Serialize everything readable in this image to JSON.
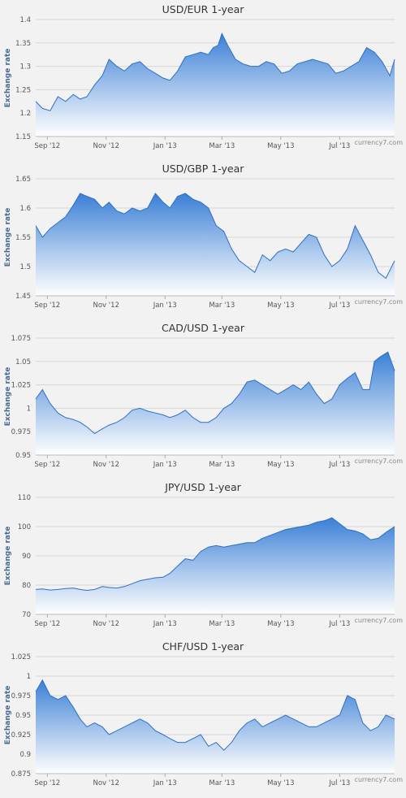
{
  "source_credit": "currency7.com",
  "chart_data": [
    {
      "type": "area",
      "title": "USD/EUR 1-year",
      "ylabel": "Exchange rate",
      "ylim": [
        1.15,
        1.4
      ],
      "yticks": [
        1.15,
        1.2,
        1.25,
        1.3,
        1.35,
        1.4
      ],
      "xlim": [
        "2012-08-20",
        "2013-08-27"
      ],
      "xticks": [
        {
          "label": "Sep '12",
          "date": "2012-09-01"
        },
        {
          "label": "Nov '12",
          "date": "2012-11-01"
        },
        {
          "label": "Jan '13",
          "date": "2013-01-01"
        },
        {
          "label": "Mar '13",
          "date": "2013-03-01"
        },
        {
          "label": "May '13",
          "date": "2013-05-01"
        },
        {
          "label": "Jul '13",
          "date": "2013-07-01"
        }
      ],
      "credit": "currency7.com",
      "series": [
        {
          "x": [
            "2012-08-20",
            "2012-08-27",
            "2012-09-04",
            "2012-09-12",
            "2012-09-20",
            "2012-09-28",
            "2012-10-05",
            "2012-10-12",
            "2012-10-20",
            "2012-10-28",
            "2012-11-04",
            "2012-11-12",
            "2012-11-20",
            "2012-11-28",
            "2012-12-06",
            "2012-12-14",
            "2012-12-22",
            "2012-12-30",
            "2013-01-06",
            "2013-01-14",
            "2013-01-22",
            "2013-01-30",
            "2013-02-07",
            "2013-02-15",
            "2013-02-20",
            "2013-02-25",
            "2013-03-01",
            "2013-03-07",
            "2013-03-15",
            "2013-03-23",
            "2013-03-31",
            "2013-04-08",
            "2013-04-16",
            "2013-04-24",
            "2013-05-02",
            "2013-05-10",
            "2013-05-18",
            "2013-05-26",
            "2013-06-03",
            "2013-06-11",
            "2013-06-19",
            "2013-06-27",
            "2013-07-05",
            "2013-07-13",
            "2013-07-21",
            "2013-07-29",
            "2013-08-06",
            "2013-08-14",
            "2013-08-22",
            "2013-08-27"
          ],
          "values": [
            1.225,
            1.21,
            1.205,
            1.235,
            1.225,
            1.24,
            1.23,
            1.235,
            1.26,
            1.28,
            1.315,
            1.3,
            1.29,
            1.305,
            1.31,
            1.295,
            1.285,
            1.275,
            1.27,
            1.29,
            1.32,
            1.325,
            1.33,
            1.325,
            1.34,
            1.345,
            1.37,
            1.345,
            1.315,
            1.305,
            1.3,
            1.3,
            1.31,
            1.305,
            1.285,
            1.29,
            1.305,
            1.31,
            1.315,
            1.31,
            1.305,
            1.285,
            1.29,
            1.3,
            1.31,
            1.34,
            1.33,
            1.31,
            1.28,
            1.315
          ]
        }
      ]
    },
    {
      "type": "area",
      "title": "USD/GBP 1-year",
      "ylabel": "Exchange rate",
      "ylim": [
        1.45,
        1.65
      ],
      "yticks": [
        1.45,
        1.5,
        1.55,
        1.6,
        1.65
      ],
      "xlim": [
        "2012-08-20",
        "2013-08-27"
      ],
      "xticks": [
        {
          "label": "Sep '12",
          "date": "2012-09-01"
        },
        {
          "label": "Nov '12",
          "date": "2012-11-01"
        },
        {
          "label": "Jan '13",
          "date": "2013-01-01"
        },
        {
          "label": "Mar '13",
          "date": "2013-03-01"
        },
        {
          "label": "May '13",
          "date": "2013-05-01"
        },
        {
          "label": "Jul '13",
          "date": "2013-07-01"
        }
      ],
      "credit": "currency7.com",
      "series": [
        {
          "x": [
            "2012-08-20",
            "2012-08-27",
            "2012-09-04",
            "2012-09-12",
            "2012-09-20",
            "2012-09-28",
            "2012-10-05",
            "2012-10-12",
            "2012-10-20",
            "2012-10-28",
            "2012-11-04",
            "2012-11-12",
            "2012-11-20",
            "2012-11-28",
            "2012-12-06",
            "2012-12-14",
            "2012-12-22",
            "2012-12-30",
            "2013-01-06",
            "2013-01-14",
            "2013-01-22",
            "2013-01-30",
            "2013-02-07",
            "2013-02-15",
            "2013-02-23",
            "2013-03-03",
            "2013-03-11",
            "2013-03-19",
            "2013-03-27",
            "2013-04-04",
            "2013-04-12",
            "2013-04-20",
            "2013-04-28",
            "2013-05-06",
            "2013-05-14",
            "2013-05-22",
            "2013-05-30",
            "2013-06-07",
            "2013-06-15",
            "2013-06-23",
            "2013-07-01",
            "2013-07-09",
            "2013-07-17",
            "2013-07-25",
            "2013-08-02",
            "2013-08-10",
            "2013-08-18",
            "2013-08-27"
          ],
          "values": [
            1.57,
            1.55,
            1.565,
            1.575,
            1.585,
            1.605,
            1.625,
            1.62,
            1.615,
            1.6,
            1.61,
            1.595,
            1.59,
            1.6,
            1.595,
            1.6,
            1.625,
            1.61,
            1.6,
            1.62,
            1.625,
            1.615,
            1.61,
            1.6,
            1.57,
            1.56,
            1.53,
            1.51,
            1.5,
            1.49,
            1.52,
            1.51,
            1.525,
            1.53,
            1.525,
            1.54,
            1.555,
            1.55,
            1.52,
            1.5,
            1.51,
            1.53,
            1.57,
            1.545,
            1.52,
            1.49,
            1.48,
            1.51
          ]
        }
      ]
    },
    {
      "type": "area",
      "title": "CAD/USD 1-year",
      "ylabel": "Exchange rate",
      "ylim": [
        0.95,
        1.075
      ],
      "yticks": [
        0.95,
        0.975,
        1,
        1.025,
        1.05,
        1.075
      ],
      "xlim": [
        "2012-08-20",
        "2013-08-27"
      ],
      "xticks": [
        {
          "label": "Sep '12",
          "date": "2012-09-01"
        },
        {
          "label": "Nov '12",
          "date": "2012-11-01"
        },
        {
          "label": "Jan '13",
          "date": "2013-01-01"
        },
        {
          "label": "Mar '13",
          "date": "2013-03-01"
        },
        {
          "label": "May '13",
          "date": "2013-05-01"
        },
        {
          "label": "Jul '13",
          "date": "2013-07-01"
        }
      ],
      "credit": "currency7.com",
      "series": [
        {
          "x": [
            "2012-08-20",
            "2012-08-27",
            "2012-09-04",
            "2012-09-12",
            "2012-09-20",
            "2012-09-28",
            "2012-10-05",
            "2012-10-12",
            "2012-10-20",
            "2012-10-28",
            "2012-11-04",
            "2012-11-12",
            "2012-11-20",
            "2012-11-28",
            "2012-12-06",
            "2012-12-14",
            "2012-12-22",
            "2012-12-30",
            "2013-01-06",
            "2013-01-14",
            "2013-01-22",
            "2013-01-30",
            "2013-02-07",
            "2013-02-15",
            "2013-02-23",
            "2013-03-03",
            "2013-03-11",
            "2013-03-19",
            "2013-03-27",
            "2013-04-04",
            "2013-04-12",
            "2013-04-20",
            "2013-04-28",
            "2013-05-06",
            "2013-05-14",
            "2013-05-22",
            "2013-05-30",
            "2013-06-07",
            "2013-06-15",
            "2013-06-23",
            "2013-07-01",
            "2013-07-09",
            "2013-07-17",
            "2013-07-25",
            "2013-08-01",
            "2013-08-06",
            "2013-08-12",
            "2013-08-20",
            "2013-08-27"
          ],
          "values": [
            1.01,
            1.02,
            1.005,
            0.995,
            0.99,
            0.988,
            0.985,
            0.98,
            0.973,
            0.978,
            0.982,
            0.985,
            0.99,
            0.998,
            1.0,
            0.997,
            0.995,
            0.993,
            0.99,
            0.993,
            0.998,
            0.99,
            0.985,
            0.985,
            0.99,
            1.0,
            1.005,
            1.015,
            1.028,
            1.03,
            1.025,
            1.02,
            1.015,
            1.02,
            1.025,
            1.02,
            1.028,
            1.015,
            1.005,
            1.01,
            1.025,
            1.032,
            1.038,
            1.02,
            1.02,
            1.05,
            1.055,
            1.06,
            1.04
          ]
        }
      ]
    },
    {
      "type": "area",
      "title": "JPY/USD 1-year",
      "ylabel": "Exchange rate",
      "ylim": [
        70,
        110
      ],
      "yticks": [
        70,
        80,
        90,
        100,
        110
      ],
      "xlim": [
        "2012-08-20",
        "2013-08-27"
      ],
      "xticks": [
        {
          "label": "Sep '12",
          "date": "2012-09-01"
        },
        {
          "label": "Nov '12",
          "date": "2012-11-01"
        },
        {
          "label": "Jan '13",
          "date": "2013-01-01"
        },
        {
          "label": "Mar '13",
          "date": "2013-03-01"
        },
        {
          "label": "May '13",
          "date": "2013-05-01"
        },
        {
          "label": "Jul '13",
          "date": "2013-07-01"
        }
      ],
      "credit": "currency7.com",
      "series": [
        {
          "x": [
            "2012-08-20",
            "2012-08-27",
            "2012-09-04",
            "2012-09-12",
            "2012-09-20",
            "2012-09-28",
            "2012-10-05",
            "2012-10-12",
            "2012-10-20",
            "2012-10-28",
            "2012-11-04",
            "2012-11-12",
            "2012-11-20",
            "2012-11-28",
            "2012-12-06",
            "2012-12-14",
            "2012-12-22",
            "2012-12-30",
            "2013-01-06",
            "2013-01-14",
            "2013-01-22",
            "2013-01-30",
            "2013-02-07",
            "2013-02-15",
            "2013-02-23",
            "2013-03-03",
            "2013-03-11",
            "2013-03-19",
            "2013-03-27",
            "2013-04-04",
            "2013-04-12",
            "2013-04-20",
            "2013-04-28",
            "2013-05-06",
            "2013-05-14",
            "2013-05-22",
            "2013-05-30",
            "2013-06-07",
            "2013-06-15",
            "2013-06-23",
            "2013-07-01",
            "2013-07-09",
            "2013-07-17",
            "2013-07-25",
            "2013-08-02",
            "2013-08-10",
            "2013-08-18",
            "2013-08-27"
          ],
          "values": [
            78.5,
            78.7,
            78.3,
            78.5,
            78.8,
            79.0,
            78.5,
            78.2,
            78.5,
            79.5,
            79.2,
            79.0,
            79.5,
            80.5,
            81.5,
            82.0,
            82.5,
            82.7,
            84.0,
            86.5,
            89.0,
            88.5,
            91.5,
            93.0,
            93.5,
            93.0,
            93.5,
            94.0,
            94.5,
            94.5,
            96.0,
            97.0,
            98.0,
            99.0,
            99.5,
            100.0,
            100.5,
            101.5,
            102.0,
            103.0,
            101.0,
            99.0,
            98.5,
            97.5,
            95.5,
            96.0,
            98.0,
            100.0
          ]
        }
      ]
    },
    {
      "type": "area",
      "title": "CHF/USD 1-year",
      "ylabel": "Exchange rate",
      "ylim": [
        0.875,
        1.025
      ],
      "yticks": [
        0.875,
        0.9,
        0.925,
        0.95,
        0.975,
        1,
        1.025
      ],
      "xlim": [
        "2012-08-20",
        "2013-08-27"
      ],
      "xticks": [
        {
          "label": "Sep '12",
          "date": "2012-09-01"
        },
        {
          "label": "Nov '12",
          "date": "2012-11-01"
        },
        {
          "label": "Jan '13",
          "date": "2013-01-01"
        },
        {
          "label": "Mar '13",
          "date": "2013-03-01"
        },
        {
          "label": "May '13",
          "date": "2013-05-01"
        },
        {
          "label": "Jul '13",
          "date": "2013-07-01"
        }
      ],
      "credit": "currency7.com",
      "series": [
        {
          "x": [
            "2012-08-20",
            "2012-08-27",
            "2012-09-04",
            "2012-09-12",
            "2012-09-20",
            "2012-09-28",
            "2012-10-05",
            "2012-10-12",
            "2012-10-20",
            "2012-10-28",
            "2012-11-04",
            "2012-11-12",
            "2012-11-20",
            "2012-11-28",
            "2012-12-06",
            "2012-12-14",
            "2012-12-22",
            "2012-12-30",
            "2013-01-06",
            "2013-01-14",
            "2013-01-22",
            "2013-01-30",
            "2013-02-07",
            "2013-02-15",
            "2013-02-23",
            "2013-03-03",
            "2013-03-11",
            "2013-03-19",
            "2013-03-27",
            "2013-04-04",
            "2013-04-12",
            "2013-04-20",
            "2013-04-28",
            "2013-05-06",
            "2013-05-14",
            "2013-05-22",
            "2013-05-30",
            "2013-06-07",
            "2013-06-15",
            "2013-06-23",
            "2013-07-01",
            "2013-07-09",
            "2013-07-17",
            "2013-07-25",
            "2013-08-02",
            "2013-08-10",
            "2013-08-18",
            "2013-08-27"
          ],
          "values": [
            0.98,
            0.995,
            0.975,
            0.97,
            0.975,
            0.96,
            0.945,
            0.935,
            0.94,
            0.935,
            0.925,
            0.93,
            0.935,
            0.94,
            0.945,
            0.94,
            0.93,
            0.925,
            0.92,
            0.915,
            0.915,
            0.92,
            0.925,
            0.91,
            0.915,
            0.905,
            0.915,
            0.93,
            0.94,
            0.945,
            0.935,
            0.94,
            0.945,
            0.95,
            0.945,
            0.94,
            0.935,
            0.935,
            0.94,
            0.945,
            0.95,
            0.975,
            0.97,
            0.94,
            0.93,
            0.935,
            0.95,
            0.945
          ]
        }
      ]
    }
  ]
}
